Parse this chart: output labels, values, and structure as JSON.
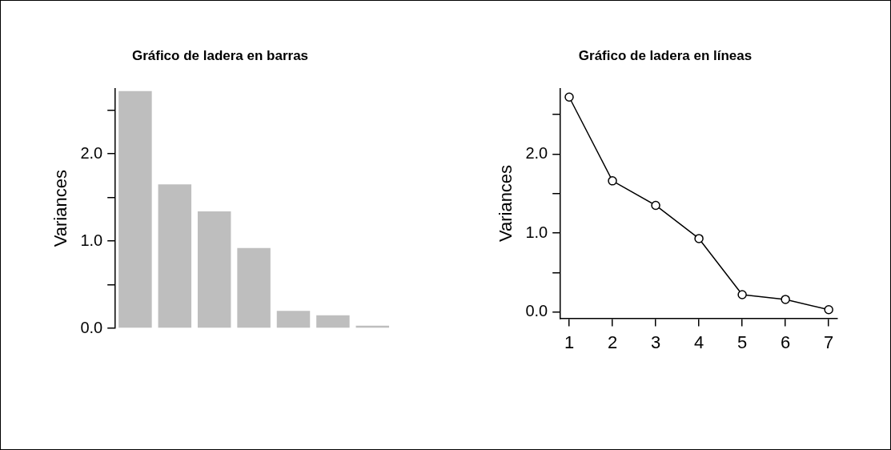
{
  "chart_data": [
    {
      "type": "bar",
      "title": "Gráfico de ladera en barras",
      "ylabel": "Variances",
      "categories": [
        null,
        null,
        null,
        null,
        null,
        null,
        null
      ],
      "values": [
        2.72,
        1.65,
        1.34,
        0.92,
        0.2,
        0.15,
        0.03
      ],
      "color": "#bebebe",
      "ylim": [
        0,
        2.75
      ],
      "yticks": [
        {
          "value": 0,
          "label": "0.0"
        },
        {
          "value": 0.5,
          "label": null
        },
        {
          "value": 1,
          "label": "1.0"
        },
        {
          "value": 1.5,
          "label": null
        },
        {
          "value": 2,
          "label": "2.0"
        },
        {
          "value": 2.5,
          "label": null
        }
      ],
      "tick_labels": "y"
    },
    {
      "type": "line",
      "title": "Gráfico de ladera en líneas",
      "ylabel": "Variances",
      "x": [
        1,
        2,
        3,
        4,
        5,
        6,
        7
      ],
      "values": [
        2.72,
        1.66,
        1.35,
        0.93,
        0.22,
        0.16,
        0.03
      ],
      "color": "#000000",
      "marker": "circle",
      "line_style": "solid",
      "xlim": [
        0.8,
        7.2
      ],
      "xticks": [
        1,
        2,
        3,
        4,
        5,
        6,
        7
      ],
      "ylim": [
        -0.08,
        2.83
      ],
      "yticks": [
        {
          "value": 0,
          "label": "0.0"
        },
        {
          "value": 0.5,
          "label": null
        },
        {
          "value": 1,
          "label": "1.0"
        },
        {
          "value": 1.5,
          "label": null
        },
        {
          "value": 2,
          "label": "2.0"
        },
        {
          "value": 2.5,
          "label": null
        }
      ]
    }
  ]
}
